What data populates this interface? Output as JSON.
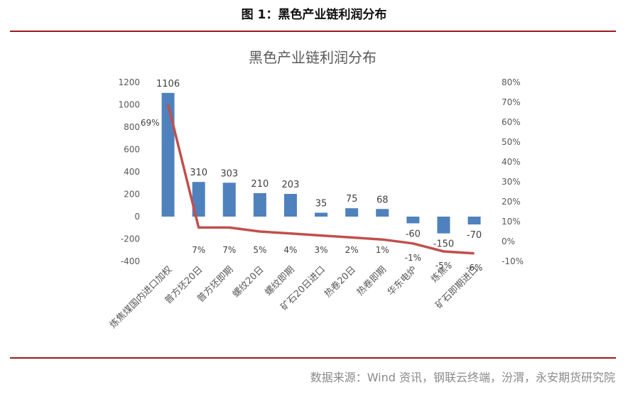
{
  "figure": {
    "caption": "图 1：黑色产业链利润分布",
    "source": "数据来源：Wind 资讯，钢联云终端，汾渭，永安期货研究院"
  },
  "colors": {
    "bar": "#4f81bd",
    "line": "#c0504d",
    "rule": "#9b1b1b",
    "text": "#595959"
  },
  "chart_data": {
    "type": "bar",
    "title": "黑色产业链利润分布",
    "categories": [
      "炼焦煤国内进口加权",
      "普方坯20日",
      "普方坯即期",
      "螺纹20日",
      "螺纹即期",
      "矿石20日进口",
      "热卷20日",
      "热卷即期",
      "华东电炉",
      "炼焦",
      "矿石即期进口"
    ],
    "series": [
      {
        "axis": "left",
        "chart": "bar",
        "values": [
          1106,
          310,
          303,
          210,
          203,
          35,
          75,
          68,
          -60,
          -150,
          -70
        ]
      },
      {
        "axis": "right",
        "chart": "line",
        "values": [
          69,
          7,
          7,
          5,
          4,
          3,
          2,
          1,
          -1,
          -5,
          -6
        ],
        "labels": [
          "69%",
          "7%",
          "7%",
          "5%",
          "4%",
          "3%",
          "2%",
          "1%",
          "-1%",
          "-5%",
          "-6%"
        ]
      }
    ],
    "y_left": {
      "min": -400,
      "max": 1200,
      "ticks": [
        "-400",
        "-200",
        "0",
        "200",
        "400",
        "600",
        "800",
        "1000",
        "1200"
      ]
    },
    "y_right": {
      "min": -10,
      "max": 80,
      "ticks": [
        "-10%",
        "0%",
        "10%",
        "20%",
        "30%",
        "40%",
        "50%",
        "60%",
        "70%",
        "80%"
      ]
    },
    "legend": "none",
    "grid": false
  }
}
